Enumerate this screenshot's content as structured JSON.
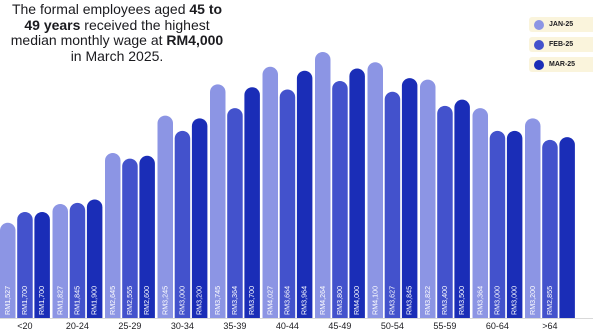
{
  "headline": {
    "line1": "The formal employees aged",
    "bold1": "45 to 49 years",
    "line2": " received the highest median monthly wage at ",
    "bold2": "RM4,000",
    "line3": " in March 2025."
  },
  "colors": {
    "jan": "#8c95e4",
    "feb": "#4352cc",
    "mar": "#1a2db7",
    "label_bg": "#faf4dc",
    "text": "#1b1b1f"
  },
  "chart_data": {
    "type": "bar",
    "categories": [
      "<20",
      "20-24",
      "25-29",
      "30-34",
      "35-39",
      "40-44",
      "45-49",
      "50-54",
      "55-59",
      "60-64",
      ">64"
    ],
    "series": [
      {
        "name": "JAN-25",
        "values": [
          1527,
          1827,
          2645,
          3245,
          3745,
          4027,
          4264,
          4100,
          3822,
          3364,
          3200
        ],
        "labels": [
          "RM1,527",
          "RM1,827",
          "RM2,645",
          "RM3,245",
          "RM3,745",
          "RM4,027",
          "RM4,264",
          "RM4,100",
          "RM3,822",
          "RM3,364",
          "RM3,200"
        ]
      },
      {
        "name": "FEB-25",
        "values": [
          1700,
          1845,
          2555,
          3000,
          3364,
          3664,
          3800,
          3627,
          3400,
          3000,
          2855
        ],
        "labels": [
          "RM1,700",
          "RM1,845",
          "RM2,555",
          "RM3,000",
          "RM3,364",
          "RM3,664",
          "RM3,800",
          "RM3,627",
          "RM3,400",
          "RM3,000",
          "RM2,855"
        ]
      },
      {
        "name": "MAR-25",
        "values": [
          1700,
          1900,
          2600,
          3200,
          3700,
          3964,
          4000,
          3845,
          3500,
          3000,
          2900
        ],
        "labels": [
          "RM1,700",
          "RM1,900",
          "RM2,600",
          "RM3,200",
          "RM3,700",
          "RM3,964",
          "RM4,000",
          "RM3,845",
          "RM3,500",
          "RM3,000",
          ""
        ]
      }
    ],
    "ylim": [
      0,
      4400
    ],
    "grid": false,
    "legend_position": "top-right"
  }
}
